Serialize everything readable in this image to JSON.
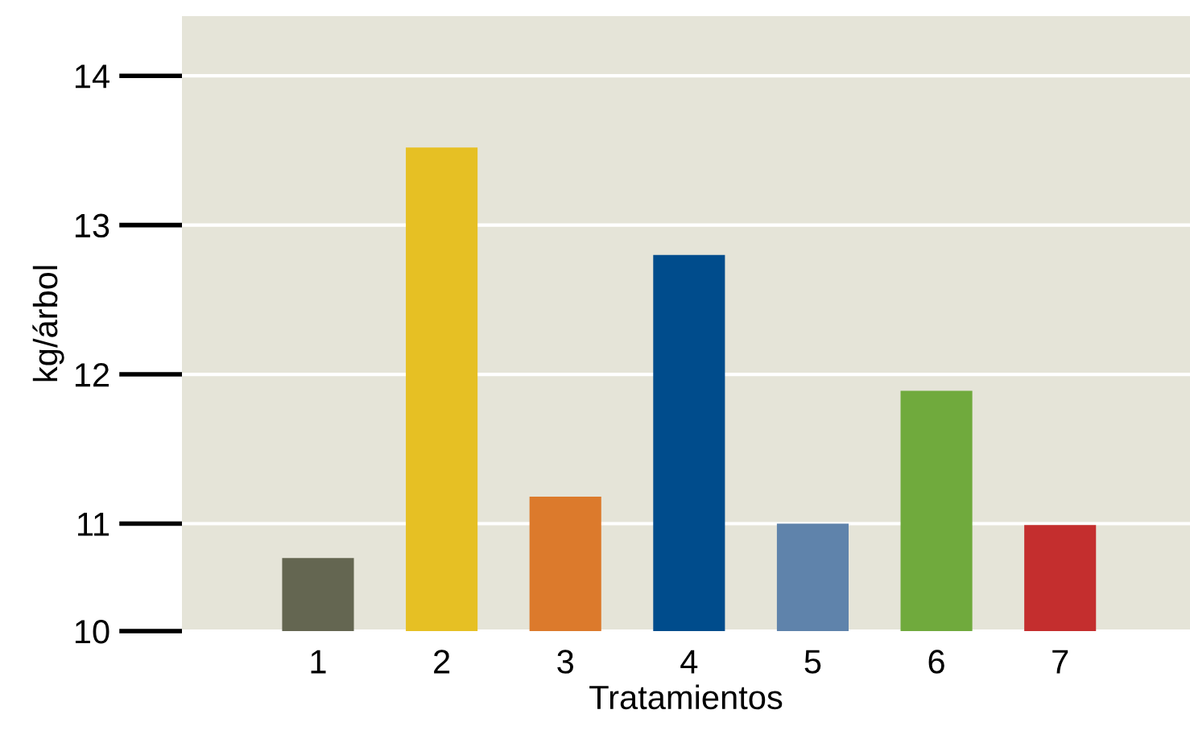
{
  "chart_data": {
    "type": "bar",
    "xlabel": "Tratamientos",
    "ylabel": "kg/árbol",
    "categories": [
      "1",
      "2",
      "3",
      "4",
      "5",
      "6",
      "7"
    ],
    "values": [
      10.77,
      13.52,
      11.18,
      12.8,
      11.0,
      11.89,
      10.99
    ],
    "colors": [
      "#646651",
      "#e6c024",
      "#dc7a2c",
      "#004c8c",
      "#5f83ab",
      "#70aa3d",
      "#c42e2e"
    ],
    "ylim": [
      10.28,
      14.4
    ],
    "yticks": [
      {
        "value": 10.28,
        "label": "10"
      },
      11,
      12,
      13,
      14
    ],
    "grid": "y"
  }
}
